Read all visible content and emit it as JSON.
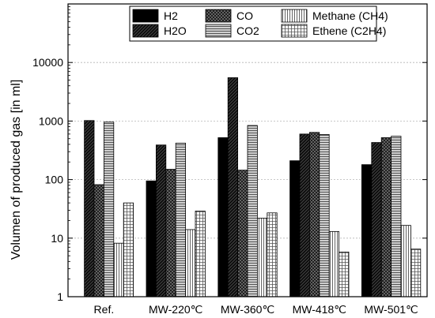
{
  "chart_data": {
    "type": "bar",
    "ylabel": "Volumen of produced gas [in ml]",
    "xlabel": "",
    "y_scale": "log",
    "ylim": [
      1,
      100000
    ],
    "y_ticks": [
      1,
      10,
      100,
      1000,
      10000
    ],
    "y_tick_labels": [
      "1",
      "10",
      "100",
      "1000",
      "10000"
    ],
    "grid": "horizontal dashed at major log decades",
    "legend_placement": "top-center",
    "categories": [
      "Ref.",
      "MW-220℃",
      "MW-360℃",
      "MW-418℃",
      "MW-501℃"
    ],
    "series": [
      {
        "name": "H2",
        "pattern": "solid",
        "values": [
          null,
          95,
          520,
          210,
          180
        ]
      },
      {
        "name": "H2O",
        "pattern": "diag-dense",
        "values": [
          1020,
          390,
          5500,
          600,
          430
        ]
      },
      {
        "name": "CO",
        "pattern": "crosshatch",
        "values": [
          82,
          150,
          145,
          640,
          520
        ]
      },
      {
        "name": "CO2",
        "pattern": "horizontal-lines",
        "values": [
          960,
          420,
          840,
          590,
          550
        ]
      },
      {
        "name": "Methane (CH4)",
        "pattern": "vertical-lines",
        "values": [
          8.2,
          14,
          22,
          13,
          16.5
        ]
      },
      {
        "name": "Ethene (C2H4)",
        "pattern": "grid",
        "values": [
          40,
          29,
          27,
          5.8,
          6.5
        ]
      }
    ],
    "legend_order": [
      0,
      2,
      4,
      1,
      3,
      5
    ]
  }
}
